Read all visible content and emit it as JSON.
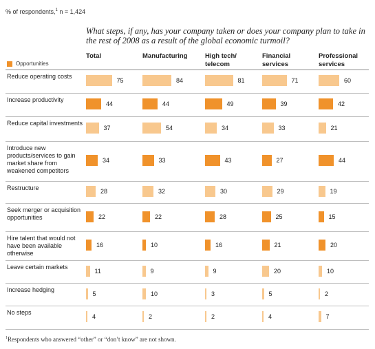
{
  "header": {
    "respondents_prefix": "% of respondents,",
    "respondents_sup": "1",
    "respondents_n": " n = 1,424",
    "question": "What steps, if any, has your company taken or does your company plan to take in the rest of 2008 as a result of the global economic turmoil?"
  },
  "legend": {
    "label": "Opportunities",
    "color": "#f0922b"
  },
  "colors": {
    "opportunity": "#f0922b",
    "other": "#f8c88e"
  },
  "footnote": {
    "sup": "1",
    "text": "Respondents who answered “other” or “don’t know” are not shown."
  },
  "chart_data": {
    "type": "bar",
    "title": "What steps, if any, has your company taken or does your company plan to take in the rest of 2008 as a result of the global economic turmoil?",
    "unit": "% of respondents",
    "categories": [
      "Reduce operating costs",
      "Increase productivity",
      "Reduce capital investments",
      "Introduce new products/services to gain market share from weakened competitors",
      "Restructure",
      "Seek merger or acquisition opportunities",
      "Hire talent that would not have been available otherwise",
      "Leave certain markets",
      "Increase hedging",
      "No steps"
    ],
    "opportunity": [
      false,
      true,
      false,
      true,
      false,
      true,
      true,
      false,
      false,
      false
    ],
    "series": [
      {
        "name": "Total",
        "values": [
          75,
          44,
          37,
          34,
          28,
          22,
          16,
          11,
          5,
          4
        ]
      },
      {
        "name": "Manufacturing",
        "values": [
          84,
          44,
          54,
          33,
          32,
          22,
          10,
          9,
          10,
          2
        ]
      },
      {
        "name": "High tech/ telecom",
        "values": [
          81,
          49,
          34,
          43,
          30,
          28,
          16,
          9,
          3,
          2
        ]
      },
      {
        "name": "Financial services",
        "values": [
          71,
          39,
          33,
          27,
          29,
          25,
          21,
          20,
          5,
          4
        ]
      },
      {
        "name": "Professional services",
        "values": [
          60,
          42,
          21,
          44,
          19,
          15,
          20,
          10,
          2,
          7
        ]
      }
    ]
  }
}
